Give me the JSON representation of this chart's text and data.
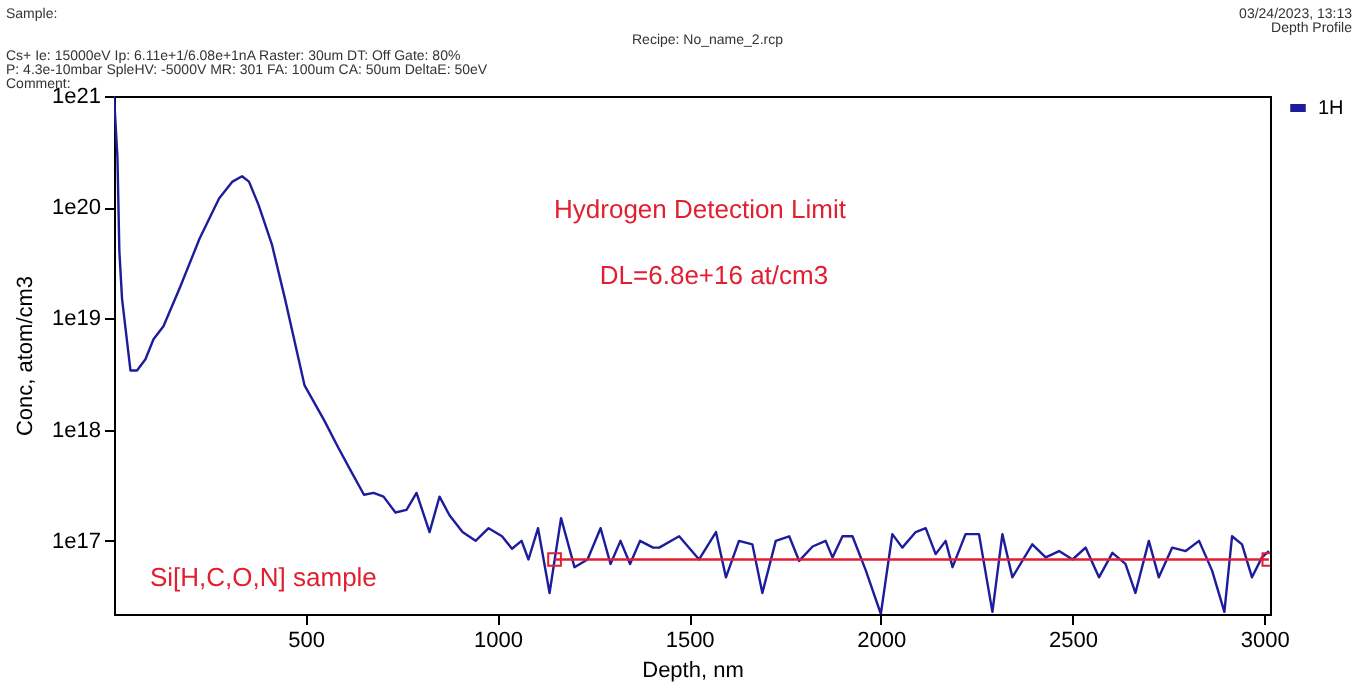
{
  "chart_data": {
    "type": "line",
    "xlabel": "Depth, nm",
    "ylabel": "Conc, atom/cm3",
    "log": "y",
    "grid": false,
    "legend": "right",
    "xlim": [
      0,
      3015
    ],
    "xticks": [
      500,
      1000,
      1500,
      2000,
      2500,
      3000
    ],
    "ylim": [
      2.2e+16,
      1e+21
    ],
    "yticks": [
      {
        "value": 1e+17,
        "label": "1e17"
      },
      {
        "value": 1e+18,
        "label": "1e18"
      },
      {
        "value": 1e+19,
        "label": "1e19"
      },
      {
        "value": 1e+20,
        "label": "1e20"
      },
      {
        "value": 1e+21,
        "label": "1e21"
      }
    ],
    "annotations": [
      "Sample:",
      "Recipe: No_name_2.rcp",
      "03/24/2023, 13:13",
      "Depth Profile",
      "Cs+   Ie: 15000eV   Ip: 6.11e+1/6.08e+1nA   Raster: 30um   DT: Off   Gate: 80%",
      "P: 4.3e-10mbar   SpleHV: -5000V   MR: 301   FA: 100um   CA: 50um   DeltaE: 50eV",
      "Comment:",
      "Hydrogen Detection Limit",
      "DL=6.8e+16 at/cm3",
      "Si[H,C,O,N] sample"
    ],
    "series": [
      {
        "name": "1H",
        "color": "#1c1c9c",
        "x": [
          0,
          9,
          14,
          21,
          43,
          60,
          82,
          103,
          129,
          172,
          223,
          274,
          309,
          334,
          352,
          377,
          412,
          446,
          497,
          549,
          583,
          617,
          652,
          677,
          703,
          734,
          763,
          789,
          823,
          849,
          875,
          909,
          943,
          977,
          1012,
          1038,
          1063,
          1081,
          1106,
          1136,
          1166,
          1201,
          1235,
          1269,
          1295,
          1321,
          1346,
          1372,
          1406,
          1422,
          1474,
          1526,
          1570,
          1596,
          1630,
          1665,
          1691,
          1726,
          1761,
          1787,
          1822,
          1856,
          1874,
          1900,
          1926,
          1961,
          2000,
          2030,
          2056,
          2091,
          2117,
          2143,
          2169,
          2187,
          2221,
          2256,
          2291,
          2317,
          2343,
          2395,
          2430,
          2465,
          2500,
          2534,
          2569,
          2604,
          2638,
          2664,
          2699,
          2725,
          2760,
          2795,
          2830,
          2864,
          2896,
          2916,
          2942,
          2968,
          2994,
          3012
        ],
        "values": [
          1e+21,
          2.8e+20,
          4e+19,
          1.5e+19,
          3.4e+18,
          3.4e+18,
          4.3e+18,
          6.5e+18,
          8.5e+18,
          1.9e+19,
          5.2e+19,
          1.2e+20,
          1.7e+20,
          1.9e+20,
          1.7e+20,
          1.05e+20,
          4.6e+19,
          1.5e+19,
          2.5e+18,
          1.2e+18,
          7.1e+17,
          4.3e+17,
          2.6e+17,
          2.7e+17,
          2.5e+17,
          1.8e+17,
          1.9e+17,
          2.7e+17,
          1.2e+17,
          2.5e+17,
          1.7e+17,
          1.2e+17,
          1e+17,
          1.3e+17,
          1.1e+17,
          8.5e+16,
          1e+17,
          6.8e+16,
          1.3e+17,
          3.4e+16,
          1.6e+17,
          5.8e+16,
          6.8e+16,
          1.3e+17,
          6.2e+16,
          1e+17,
          6.2e+16,
          1e+17,
          8.7e+16,
          8.7e+16,
          1.1e+17,
          6.8e+16,
          1.2e+17,
          4.7e+16,
          1e+17,
          9.3e+16,
          3.4e+16,
          1e+17,
          1.1e+17,
          6.6e+16,
          8.9e+16,
          1e+17,
          7.1e+16,
          1.1e+17,
          1.1e+17,
          5.4e+16,
          2.2e+16,
          1.15e+17,
          8.7e+16,
          1.2e+17,
          1.3e+17,
          7.6e+16,
          1e+17,
          5.8e+16,
          1.15e+17,
          1.15e+17,
          2.3e+16,
          1.15e+17,
          4.7e+16,
          9.3e+16,
          7.1e+16,
          8.1e+16,
          6.8e+16,
          8.7e+16,
          4.7e+16,
          7.8e+16,
          6.2e+16,
          3.4e+16,
          1e+17,
          4.7e+16,
          8.7e+16,
          8.1e+16,
          1e+17,
          5.4e+16,
          2.3e+16,
          1.1e+17,
          9.3e+16,
          4.7e+16,
          7.1e+16,
          8.1e+16
        ]
      },
      {
        "color": "#e02030",
        "marker": "square",
        "x": [
          1149,
          3012
        ],
        "values": [
          6.8e+16,
          6.8e+16
        ]
      }
    ]
  }
}
